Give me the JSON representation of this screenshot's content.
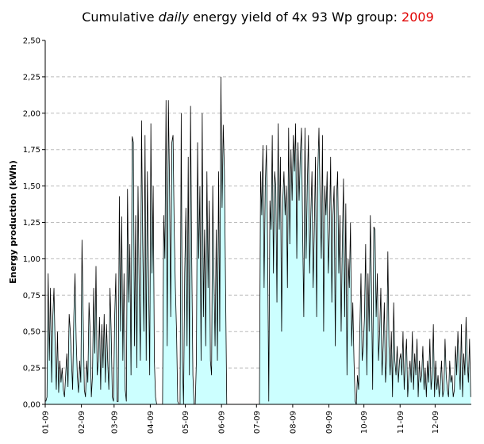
{
  "chart_data": {
    "type": "area",
    "title_parts": [
      "Cumulative",
      "daily",
      "energy yield of 4x 93 Wp group:",
      "2009"
    ],
    "ylabel": "Energy production (kWh)",
    "color": "#ccffff",
    "line_color": "#000000",
    "title_accent": "#e00000",
    "grid": true,
    "ylim": [
      0,
      2.5
    ],
    "yticks": [
      {
        "value": 0,
        "label": "0,00"
      },
      {
        "value": 0.25,
        "label": "0,25"
      },
      {
        "value": 0.5,
        "label": "0,50"
      },
      {
        "value": 0.75,
        "label": "0,75"
      },
      {
        "value": 1,
        "label": "1,00"
      },
      {
        "value": 1.25,
        "label": "1,25"
      },
      {
        "value": 1.5,
        "label": "1,50"
      },
      {
        "value": 1.75,
        "label": "1,75"
      },
      {
        "value": 2,
        "label": "2,00"
      },
      {
        "value": 2.25,
        "label": "2,25"
      },
      {
        "value": 2.5,
        "label": "2,50"
      }
    ],
    "categories": [
      "01-09",
      null,
      null,
      null,
      null,
      null,
      null,
      null,
      null,
      null,
      null,
      null,
      null,
      null,
      null,
      null,
      null,
      null,
      null,
      null,
      null,
      null,
      null,
      null,
      null,
      null,
      null,
      null,
      null,
      null,
      null,
      "02-09",
      null,
      null,
      null,
      null,
      null,
      null,
      null,
      null,
      null,
      null,
      null,
      null,
      null,
      null,
      null,
      null,
      null,
      null,
      null,
      null,
      null,
      null,
      null,
      null,
      null,
      null,
      null,
      "03-09",
      null,
      null,
      null,
      null,
      null,
      null,
      null,
      null,
      null,
      null,
      null,
      null,
      null,
      null,
      null,
      null,
      null,
      null,
      null,
      null,
      null,
      null,
      null,
      null,
      null,
      null,
      null,
      null,
      null,
      null,
      "04-09",
      null,
      null,
      null,
      null,
      null,
      null,
      null,
      null,
      null,
      null,
      null,
      null,
      null,
      null,
      null,
      null,
      null,
      null,
      null,
      null,
      null,
      null,
      null,
      null,
      null,
      null,
      null,
      null,
      null,
      "05-09",
      null,
      null,
      null,
      null,
      null,
      null,
      null,
      null,
      null,
      null,
      null,
      null,
      null,
      null,
      null,
      null,
      null,
      null,
      null,
      null,
      null,
      null,
      null,
      null,
      null,
      null,
      null,
      null,
      null,
      null,
      "06-09",
      null,
      null,
      null,
      null,
      null,
      null,
      null,
      null,
      null,
      null,
      null,
      null,
      null,
      null,
      null,
      null,
      null,
      null,
      null,
      null,
      null,
      null,
      null,
      null,
      null,
      null,
      null,
      null,
      null,
      "07-09",
      null,
      null,
      null,
      null,
      null,
      null,
      null,
      null,
      null,
      null,
      null,
      null,
      null,
      null,
      null,
      null,
      null,
      null,
      null,
      null,
      null,
      null,
      null,
      null,
      null,
      null,
      null,
      null,
      null,
      null,
      "08-09",
      null,
      null,
      null,
      null,
      null,
      null,
      null,
      null,
      null,
      null,
      null,
      null,
      null,
      null,
      null,
      null,
      null,
      null,
      null,
      null,
      null,
      null,
      null,
      null,
      null,
      null,
      null,
      null,
      null,
      null,
      "09-09",
      null,
      null,
      null,
      null,
      null,
      null,
      null,
      null,
      null,
      null,
      null,
      null,
      null,
      null,
      null,
      null,
      null,
      null,
      null,
      null,
      null,
      null,
      null,
      null,
      null,
      null,
      null,
      null,
      null,
      "10-09",
      null,
      null,
      null,
      null,
      null,
      null,
      null,
      null,
      null,
      null,
      null,
      null,
      null,
      null,
      null,
      null,
      null,
      null,
      null,
      null,
      null,
      null,
      null,
      null,
      null,
      null,
      null,
      null,
      null,
      null,
      "11-09",
      null,
      null,
      null,
      null,
      null,
      null,
      null,
      null,
      null,
      null,
      null,
      null,
      null,
      null,
      null,
      null,
      null,
      null,
      null,
      null,
      null,
      null,
      null,
      null,
      null,
      null,
      null,
      null,
      null,
      "12-09",
      null,
      null,
      null,
      null,
      null,
      null,
      null,
      null,
      null,
      null,
      null,
      null,
      null,
      null,
      null,
      null,
      null,
      null,
      null,
      null,
      null,
      null,
      null,
      null,
      null,
      null,
      null,
      null,
      null,
      null
    ],
    "values": [
      0.02,
      0.05,
      0.9,
      0.3,
      0.8,
      0.15,
      0.6,
      0.8,
      0.4,
      0.1,
      0.5,
      0.08,
      0.3,
      0.15,
      0.25,
      0.1,
      0.05,
      0.2,
      0.35,
      0.12,
      0.62,
      0.5,
      0.3,
      0.1,
      0.6,
      0.9,
      0.45,
      0.2,
      0.08,
      0.3,
      0.15,
      1.13,
      0.6,
      0.1,
      0.05,
      0.3,
      0.15,
      0.7,
      0.5,
      0.05,
      0.2,
      0.8,
      0.35,
      0.95,
      0.2,
      0.3,
      0.6,
      0.1,
      0.55,
      0.25,
      0.62,
      0.15,
      0.55,
      0.3,
      0.1,
      0.8,
      0.5,
      0.05,
      0.02,
      0.6,
      0.9,
      0.02,
      0.02,
      1.43,
      0.5,
      1.29,
      0.3,
      0.9,
      0.1,
      0.02,
      1.48,
      0.7,
      1.1,
      0.2,
      1.84,
      1.8,
      0.4,
      1.3,
      0.25,
      1.5,
      0.8,
      0.3,
      1.95,
      1.1,
      0.5,
      1.85,
      0.3,
      1.6,
      0.9,
      0.2,
      1.93,
      0.9,
      1.5,
      0.3,
      0.05,
      0,
      0,
      0,
      0,
      0,
      0,
      1.3,
      1.0,
      2.09,
      0.4,
      2.09,
      1.5,
      0.6,
      1.8,
      1.85,
      1.2,
      0.8,
      0.5,
      0.02,
      0,
      0,
      2.0,
      0.3,
      0,
      0.9,
      1.35,
      0.4,
      1.7,
      0.2,
      2.05,
      1.0,
      0.2,
      0,
      0,
      0.3,
      1.8,
      1.0,
      1.5,
      0.3,
      2.0,
      0.6,
      1.2,
      0.4,
      1.6,
      0.8,
      1.4,
      0.3,
      0.2,
      1.5,
      0.9,
      0.4,
      1.2,
      0.3,
      1.6,
      0.5,
      2.25,
      1.35,
      1.92,
      1.6,
      0.8,
      0,
      0,
      0,
      0,
      0,
      0,
      0,
      0,
      0,
      0,
      0,
      0,
      0,
      0,
      0,
      0,
      0,
      0,
      0,
      0,
      0,
      0,
      0,
      0,
      0,
      0,
      0,
      0,
      0,
      1.6,
      1.3,
      1.78,
      0.8,
      1.5,
      1.78,
      1.1,
      0.02,
      1.4,
      1.2,
      1.85,
      0.9,
      1.6,
      1.5,
      0.7,
      1.93,
      1.2,
      1.7,
      0.5,
      1.4,
      1.6,
      1.3,
      1.5,
      0.8,
      1.9,
      1.1,
      1.75,
      1.4,
      1.85,
      1.6,
      1.93,
      1.0,
      1.8,
      1.4,
      1.7,
      1.9,
      1.2,
      0.6,
      1.9,
      1.0,
      1.5,
      1.85,
      0.9,
      1.3,
      1.6,
      0.8,
      1.2,
      1.7,
      0.6,
      1.6,
      1.9,
      1.4,
      1.0,
      1.85,
      0.5,
      1.5,
      1.3,
      1.6,
      0.9,
      1.2,
      1.7,
      0.7,
      1.3,
      1.5,
      0.4,
      1.4,
      1.6,
      0.9,
      1.3,
      0.5,
      1.1,
      1.55,
      0.6,
      1.38,
      0.2,
      1.0,
      0.8,
      1.25,
      0.4,
      0.7,
      0.3,
      0.02,
      0,
      0.2,
      0.1,
      0.5,
      0.9,
      0.3,
      0.4,
      0.6,
      1.1,
      0.2,
      0.9,
      0.5,
      1.3,
      0.8,
      0.1,
      1.22,
      1.2,
      0.6,
      0.9,
      0.3,
      0.5,
      0.8,
      0.2,
      0.4,
      0.7,
      0.15,
      0.3,
      1.05,
      0.4,
      0.2,
      0.5,
      0.05,
      0.7,
      0.3,
      0.2,
      0.4,
      0.15,
      0.3,
      0.35,
      0.2,
      0.5,
      0.1,
      0.3,
      0.45,
      0.05,
      0.2,
      0.3,
      0.15,
      0.5,
      0.1,
      0.35,
      0.2,
      0.45,
      0.05,
      0.3,
      0.15,
      0.2,
      0.4,
      0.1,
      0.25,
      0.05,
      0.3,
      0.15,
      0.45,
      0.1,
      0.2,
      0.55,
      0.05,
      0.3,
      0.1,
      0.2,
      0.05,
      0.15,
      0.3,
      0.05,
      0.1,
      0.45,
      0.2,
      0.1,
      0.05,
      0.3,
      0.15,
      0.2,
      0.05,
      0.1,
      0.4,
      0.2,
      0.5,
      0.3,
      0.1,
      0.55,
      0.05,
      0.35,
      0.2,
      0.6,
      0.3,
      0.15,
      0.45,
      0.05
    ]
  }
}
